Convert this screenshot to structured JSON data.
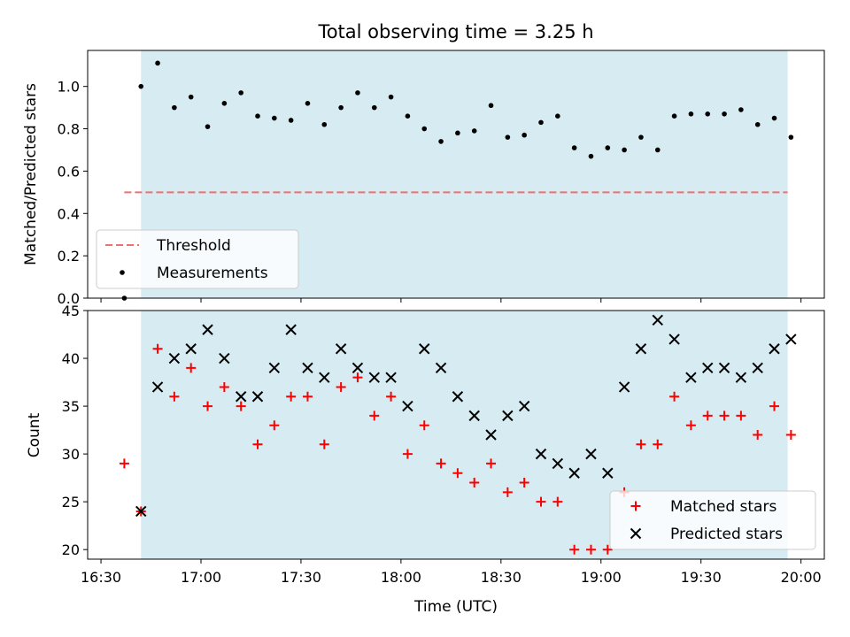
{
  "figure": {
    "title": "Total observing time = 3.25 h",
    "xlabel": "Time (UTC)",
    "shade_color": "#add8e6",
    "shade_opacity": 0.5
  },
  "chart_data": [
    {
      "type": "scatter",
      "ylabel": "Matched/Predicted stars",
      "ylim": [
        0,
        1.17
      ],
      "yticks": [
        "0.0",
        "0.2",
        "0.4",
        "0.6",
        "0.8",
        "1.0"
      ],
      "xlim": [
        "16:26",
        "20:07"
      ],
      "shaded_span": [
        "16:42",
        "19:56"
      ],
      "threshold": {
        "name": "Threshold",
        "value": 0.5,
        "x_range": [
          "16:37",
          "19:56"
        ],
        "color": "#f07070",
        "style": "dashed"
      },
      "series": [
        {
          "name": "Measurements",
          "color": "#000000",
          "marker": "dot",
          "points": [
            [
              "16:37",
              0.0
            ],
            [
              "16:42",
              1.0
            ],
            [
              "16:47",
              1.11
            ],
            [
              "16:52",
              0.9
            ],
            [
              "16:57",
              0.95
            ],
            [
              "17:02",
              0.81
            ],
            [
              "17:07",
              0.92
            ],
            [
              "17:12",
              0.97
            ],
            [
              "17:17",
              0.86
            ],
            [
              "17:22",
              0.85
            ],
            [
              "17:27",
              0.84
            ],
            [
              "17:32",
              0.92
            ],
            [
              "17:37",
              0.82
            ],
            [
              "17:42",
              0.9
            ],
            [
              "17:47",
              0.97
            ],
            [
              "17:52",
              0.9
            ],
            [
              "17:57",
              0.95
            ],
            [
              "18:02",
              0.86
            ],
            [
              "18:07",
              0.8
            ],
            [
              "18:12",
              0.74
            ],
            [
              "18:17",
              0.78
            ],
            [
              "18:22",
              0.79
            ],
            [
              "18:27",
              0.91
            ],
            [
              "18:32",
              0.76
            ],
            [
              "18:37",
              0.77
            ],
            [
              "18:42",
              0.83
            ],
            [
              "18:47",
              0.86
            ],
            [
              "18:52",
              0.71
            ],
            [
              "18:57",
              0.67
            ],
            [
              "19:02",
              0.71
            ],
            [
              "19:07",
              0.7
            ],
            [
              "19:12",
              0.76
            ],
            [
              "19:17",
              0.7
            ],
            [
              "19:22",
              0.86
            ],
            [
              "19:27",
              0.87
            ],
            [
              "19:32",
              0.87
            ],
            [
              "19:37",
              0.87
            ],
            [
              "19:42",
              0.89
            ],
            [
              "19:47",
              0.82
            ],
            [
              "19:52",
              0.85
            ],
            [
              "19:57",
              0.76
            ]
          ]
        }
      ],
      "legend": {
        "placement": "lower-left",
        "entries": [
          "Threshold",
          "Measurements"
        ]
      }
    },
    {
      "type": "scatter",
      "ylabel": "Count",
      "xlabel": "Time (UTC)",
      "ylim": [
        19,
        45
      ],
      "yticks": [
        "20",
        "25",
        "30",
        "35",
        "40",
        "45"
      ],
      "xlim": [
        "16:26",
        "20:07"
      ],
      "xticks": [
        "16:30",
        "17:00",
        "17:30",
        "18:00",
        "18:30",
        "19:00",
        "19:30",
        "20:00"
      ],
      "shaded_span": [
        "16:42",
        "19:56"
      ],
      "series": [
        {
          "name": "Matched stars",
          "color": "#ff0000",
          "marker": "plus",
          "points": [
            [
              "16:37",
              29
            ],
            [
              "16:42",
              24
            ],
            [
              "16:47",
              41
            ],
            [
              "16:52",
              36
            ],
            [
              "16:57",
              39
            ],
            [
              "17:02",
              35
            ],
            [
              "17:07",
              37
            ],
            [
              "17:12",
              35
            ],
            [
              "17:17",
              31
            ],
            [
              "17:22",
              33
            ],
            [
              "17:27",
              36
            ],
            [
              "17:32",
              36
            ],
            [
              "17:37",
              31
            ],
            [
              "17:42",
              37
            ],
            [
              "17:47",
              38
            ],
            [
              "17:52",
              34
            ],
            [
              "17:57",
              36
            ],
            [
              "18:02",
              30
            ],
            [
              "18:07",
              33
            ],
            [
              "18:12",
              29
            ],
            [
              "18:17",
              28
            ],
            [
              "18:22",
              27
            ],
            [
              "18:27",
              29
            ],
            [
              "18:32",
              26
            ],
            [
              "18:37",
              27
            ],
            [
              "18:42",
              25
            ],
            [
              "18:47",
              25
            ],
            [
              "18:52",
              20
            ],
            [
              "18:57",
              20
            ],
            [
              "19:02",
              20
            ],
            [
              "19:07",
              26
            ],
            [
              "19:12",
              31
            ],
            [
              "19:17",
              31
            ],
            [
              "19:22",
              36
            ],
            [
              "19:27",
              33
            ],
            [
              "19:32",
              34
            ],
            [
              "19:37",
              34
            ],
            [
              "19:42",
              34
            ],
            [
              "19:47",
              32
            ],
            [
              "19:52",
              35
            ],
            [
              "19:57",
              32
            ]
          ]
        },
        {
          "name": "Predicted stars",
          "color": "#000000",
          "marker": "x",
          "points": [
            [
              "16:42",
              24
            ],
            [
              "16:47",
              37
            ],
            [
              "16:52",
              40
            ],
            [
              "16:57",
              41
            ],
            [
              "17:02",
              43
            ],
            [
              "17:07",
              40
            ],
            [
              "17:12",
              36
            ],
            [
              "17:17",
              36
            ],
            [
              "17:22",
              39
            ],
            [
              "17:27",
              43
            ],
            [
              "17:32",
              39
            ],
            [
              "17:37",
              38
            ],
            [
              "17:42",
              41
            ],
            [
              "17:47",
              39
            ],
            [
              "17:52",
              38
            ],
            [
              "17:57",
              38
            ],
            [
              "18:02",
              35
            ],
            [
              "18:07",
              41
            ],
            [
              "18:12",
              39
            ],
            [
              "18:17",
              36
            ],
            [
              "18:22",
              34
            ],
            [
              "18:27",
              32
            ],
            [
              "18:32",
              34
            ],
            [
              "18:37",
              35
            ],
            [
              "18:42",
              30
            ],
            [
              "18:47",
              29
            ],
            [
              "18:52",
              28
            ],
            [
              "18:57",
              30
            ],
            [
              "19:02",
              28
            ],
            [
              "19:07",
              37
            ],
            [
              "19:12",
              41
            ],
            [
              "19:17",
              44
            ],
            [
              "19:22",
              42
            ],
            [
              "19:27",
              38
            ],
            [
              "19:32",
              39
            ],
            [
              "19:37",
              39
            ],
            [
              "19:42",
              38
            ],
            [
              "19:47",
              39
            ],
            [
              "19:52",
              41
            ],
            [
              "19:57",
              42
            ]
          ]
        }
      ],
      "legend": {
        "placement": "lower-right",
        "entries": [
          "Matched stars",
          "Predicted stars"
        ]
      }
    }
  ]
}
